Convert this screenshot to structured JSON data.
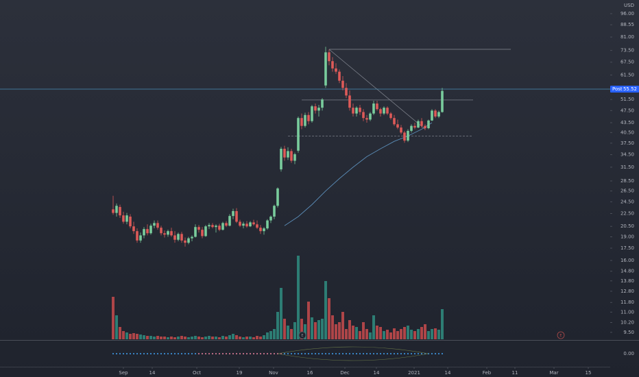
{
  "chart_data": {
    "type": "candlestick",
    "currency": "USD",
    "log_scale": true,
    "grid": false,
    "up_color": "#79cc9c",
    "down_color": "#dd5a58",
    "volume_up_color": "#2d7d74",
    "volume_down_color": "#ae4548",
    "ma_color": "#5b8db8",
    "ylim": [
      9.03,
      106
    ],
    "xlim": [
      -33,
      145
    ],
    "yticks": [
      {
        "value": 96,
        "label": "96.00"
      },
      {
        "value": 88.55,
        "label": "88.55"
      },
      {
        "value": 81,
        "label": "81.00"
      },
      {
        "value": 73.5,
        "label": "73.50"
      },
      {
        "value": 67.5,
        "label": "67.50"
      },
      {
        "value": 61.5,
        "label": "61.50"
      },
      {
        "value": 51.5,
        "label": "51.50"
      },
      {
        "value": 47.5,
        "label": "47.50"
      },
      {
        "value": 43.5,
        "label": "43.50"
      },
      {
        "value": 40.5,
        "label": "40.50"
      },
      {
        "value": 37.5,
        "label": "37.50"
      },
      {
        "value": 34.5,
        "label": "34.50"
      },
      {
        "value": 31.5,
        "label": "31.50"
      },
      {
        "value": 28.5,
        "label": "28.50"
      },
      {
        "value": 26.5,
        "label": "26.50"
      },
      {
        "value": 24.5,
        "label": "24.50"
      },
      {
        "value": 22.5,
        "label": "22.50"
      },
      {
        "value": 20.5,
        "label": "20.50"
      },
      {
        "value": 19,
        "label": "19.00"
      },
      {
        "value": 17.5,
        "label": "17.50"
      },
      {
        "value": 16,
        "label": "16.00"
      },
      {
        "value": 14.8,
        "label": "14.80"
      },
      {
        "value": 13.8,
        "label": "13.80"
      },
      {
        "value": 12.8,
        "label": "12.80"
      },
      {
        "value": 11.8,
        "label": "11.80"
      },
      {
        "value": 11,
        "label": "11.00"
      },
      {
        "value": 10.2,
        "label": "10.20"
      },
      {
        "value": 9.5,
        "label": "9.50"
      }
    ],
    "xticks": [
      {
        "value": 3,
        "label": "Sep"
      },
      {
        "value": 11.4,
        "label": "14"
      },
      {
        "value": 24.4,
        "label": "Oct"
      },
      {
        "value": 36.8,
        "label": "19"
      },
      {
        "value": 46.8,
        "label": "Nov"
      },
      {
        "value": 57.4,
        "label": "16"
      },
      {
        "value": 67.6,
        "label": "Dec"
      },
      {
        "value": 76.8,
        "label": "14"
      },
      {
        "value": 87.8,
        "label": "2021"
      },
      {
        "value": 97.6,
        "label": "14"
      },
      {
        "value": 109,
        "label": "Feb"
      },
      {
        "value": 117.2,
        "label": "11"
      },
      {
        "value": 128.6,
        "label": "Mar"
      },
      {
        "value": 138.6,
        "label": "15"
      }
    ],
    "candles": [
      [
        23.2,
        25.6,
        22.3,
        22.6
      ],
      [
        22.6,
        24.2,
        22.0,
        23.8
      ],
      [
        23.6,
        24.0,
        21.8,
        22.2
      ],
      [
        22.2,
        22.8,
        20.9,
        21.2
      ],
      [
        21.2,
        22.6,
        20.8,
        22.2
      ],
      [
        22.0,
        22.4,
        20.2,
        20.5
      ],
      [
        20.5,
        21.2,
        19.4,
        19.8
      ],
      [
        19.8,
        20.2,
        18.2,
        18.5
      ],
      [
        18.5,
        19.6,
        18.2,
        19.2
      ],
      [
        19.2,
        20.4,
        18.8,
        20.1
      ],
      [
        20.1,
        20.8,
        19.2,
        19.5
      ],
      [
        19.5,
        20.9,
        19.3,
        20.6
      ],
      [
        20.6,
        21.4,
        20.2,
        21.0
      ],
      [
        21.0,
        21.4,
        20.0,
        20.3
      ],
      [
        20.3,
        20.6,
        19.2,
        19.5
      ],
      [
        19.5,
        19.9,
        18.9,
        19.3
      ],
      [
        19.3,
        20.0,
        19.0,
        19.8
      ],
      [
        19.8,
        20.3,
        19.0,
        19.2
      ],
      [
        19.2,
        19.8,
        18.2,
        18.6
      ],
      [
        18.6,
        19.6,
        18.4,
        19.4
      ],
      [
        19.4,
        19.7,
        18.2,
        18.5
      ],
      [
        18.5,
        18.9,
        17.7,
        18.2
      ],
      [
        18.2,
        19.0,
        18.0,
        18.8
      ],
      [
        18.8,
        19.2,
        18.4,
        19.0
      ],
      [
        19.0,
        20.8,
        18.9,
        20.4
      ],
      [
        20.4,
        20.7,
        19.6,
        20.0
      ],
      [
        20.0,
        20.4,
        18.8,
        19.1
      ],
      [
        19.1,
        20.7,
        19.0,
        20.5
      ],
      [
        20.5,
        21.0,
        20.1,
        20.7
      ],
      [
        20.7,
        21.0,
        20.2,
        20.4
      ],
      [
        20.4,
        20.8,
        19.6,
        20.6
      ],
      [
        20.6,
        20.9,
        19.8,
        20.0
      ],
      [
        20.0,
        21.2,
        19.9,
        21.0
      ],
      [
        21.0,
        21.3,
        20.4,
        20.6
      ],
      [
        20.6,
        22.4,
        20.5,
        22.1
      ],
      [
        22.1,
        23.3,
        21.6,
        22.9
      ],
      [
        22.9,
        23.4,
        21.0,
        21.2
      ],
      [
        21.2,
        21.5,
        20.4,
        20.6
      ],
      [
        20.6,
        21.2,
        20.2,
        20.9
      ],
      [
        20.9,
        21.3,
        20.3,
        20.5
      ],
      [
        20.5,
        21.3,
        20.4,
        21.1
      ],
      [
        21.1,
        21.5,
        20.6,
        20.8
      ],
      [
        20.8,
        21.4,
        20.1,
        20.3
      ],
      [
        20.3,
        20.7,
        19.4,
        19.8
      ],
      [
        19.8,
        20.4,
        19.3,
        20.2
      ],
      [
        20.2,
        21.6,
        20.0,
        21.4
      ],
      [
        21.4,
        22.2,
        21.0,
        22.0
      ],
      [
        22.0,
        24.0,
        21.6,
        23.8
      ],
      [
        23.8,
        27.2,
        23.5,
        27.0
      ],
      [
        31.0,
        36.5,
        30.5,
        36.0
      ],
      [
        36.0,
        36.8,
        33.0,
        33.8
      ],
      [
        33.8,
        36.4,
        33.2,
        35.4
      ],
      [
        35.4,
        36.0,
        32.5,
        33.0
      ],
      [
        33.0,
        35.0,
        32.2,
        34.6
      ],
      [
        35.5,
        45.5,
        35.0,
        45.0
      ],
      [
        45.0,
        46.5,
        41.5,
        42.5
      ],
      [
        42.5,
        46.8,
        42.0,
        46.0
      ],
      [
        46.0,
        47.0,
        43.0,
        44.0
      ],
      [
        44.0,
        49.5,
        43.5,
        49.0
      ],
      [
        49.0,
        50.0,
        46.5,
        47.5
      ],
      [
        47.5,
        49.5,
        45.5,
        48.5
      ],
      [
        48.5,
        52.0,
        47.5,
        51.5
      ],
      [
        57.0,
        75.5,
        56.0,
        72.5
      ],
      [
        72.5,
        74.0,
        66.0,
        68.0
      ],
      [
        68.0,
        70.0,
        63.0,
        64.5
      ],
      [
        64.5,
        67.0,
        62.0,
        63.0
      ],
      [
        63.0,
        64.0,
        58.0,
        59.0
      ],
      [
        59.0,
        61.0,
        55.0,
        56.0
      ],
      [
        56.0,
        58.0,
        52.0,
        53.0
      ],
      [
        53.0,
        55.0,
        47.5,
        48.5
      ],
      [
        48.5,
        50.0,
        45.5,
        46.5
      ],
      [
        46.5,
        49.0,
        45.5,
        48.5
      ],
      [
        48.5,
        49.5,
        46.0,
        47.0
      ],
      [
        47.0,
        48.0,
        44.0,
        45.0
      ],
      [
        45.0,
        46.0,
        43.5,
        44.5
      ],
      [
        44.5,
        47.0,
        44.0,
        46.5
      ],
      [
        46.5,
        51.0,
        46.0,
        50.0
      ],
      [
        50.0,
        51.0,
        47.5,
        48.0
      ],
      [
        48.0,
        48.5,
        45.5,
        46.5
      ],
      [
        46.5,
        49.0,
        46.0,
        48.5
      ],
      [
        48.5,
        49.0,
        46.0,
        46.5
      ],
      [
        46.5,
        47.0,
        44.5,
        45.0
      ],
      [
        45.0,
        46.0,
        42.5,
        43.0
      ],
      [
        43.0,
        44.5,
        41.5,
        42.0
      ],
      [
        42.0,
        42.8,
        40.0,
        40.5
      ],
      [
        40.5,
        41.0,
        37.6,
        38.2
      ],
      [
        38.2,
        41.5,
        37.8,
        41.0
      ],
      [
        41.0,
        43.0,
        40.5,
        42.5
      ],
      [
        42.5,
        43.5,
        41.5,
        42.0
      ],
      [
        42.0,
        44.5,
        41.8,
        44.0
      ],
      [
        44.0,
        45.0,
        42.0,
        42.5
      ],
      [
        42.5,
        43.0,
        41.2,
        41.8
      ],
      [
        41.8,
        44.5,
        41.5,
        44.2
      ],
      [
        44.2,
        48.0,
        44.0,
        47.5
      ],
      [
        47.5,
        48.0,
        45.0,
        45.5
      ],
      [
        45.5,
        47.5,
        45.0,
        47.0
      ],
      [
        47.0,
        56.0,
        46.8,
        54.8
      ]
    ],
    "volume_lim": [
      0,
      130
    ],
    "volume": [
      62,
      35,
      18,
      12,
      10,
      8,
      9,
      8,
      7,
      6,
      5,
      5,
      4,
      5,
      4,
      4,
      3,
      4,
      3,
      4,
      5,
      4,
      3,
      4,
      5,
      4,
      3,
      4,
      5,
      4,
      4,
      3,
      5,
      4,
      6,
      8,
      6,
      4,
      3,
      4,
      4,
      3,
      5,
      4,
      6,
      10,
      12,
      15,
      40,
      75,
      30,
      20,
      15,
      25,
      122,
      30,
      22,
      55,
      32,
      25,
      28,
      30,
      85,
      60,
      35,
      22,
      25,
      40,
      15,
      28,
      20,
      18,
      12,
      25,
      15,
      10,
      35,
      20,
      18,
      12,
      14,
      10,
      16,
      12,
      15,
      18,
      20,
      14,
      12,
      15,
      18,
      22,
      12,
      15,
      16,
      14,
      44
    ],
    "ma": {
      "x": [
        50,
        54,
        58,
        62,
        66,
        70,
        74,
        78,
        82,
        86,
        90,
        93
      ],
      "values": [
        20.6,
        22,
        24,
        26.5,
        29,
        31.5,
        34,
        36,
        38,
        39.5,
        41.5,
        43.5
      ]
    },
    "drawings": [
      {
        "type": "hline",
        "value": 74.1,
        "x": [
          63,
          116
        ],
        "dashed": false
      },
      {
        "type": "hline",
        "value": 51.3,
        "x": [
          55,
          105
        ],
        "dashed": false
      },
      {
        "type": "hline",
        "value": 39.5,
        "x": [
          51,
          105
        ],
        "dashed": true
      },
      {
        "type": "trend",
        "value": [
          74.1,
          41.5
        ],
        "x": [
          63,
          91
        ],
        "dashed": false
      }
    ],
    "last_price": {
      "label": "Post",
      "value": 55.52,
      "color": "#2962ff"
    },
    "events": [
      "E",
      "E"
    ],
    "event_x": [
      55.2,
      130.6
    ],
    "indicator": {
      "yticks": [
        {
          "value": 0,
          "label": "0.00"
        }
      ]
    }
  }
}
